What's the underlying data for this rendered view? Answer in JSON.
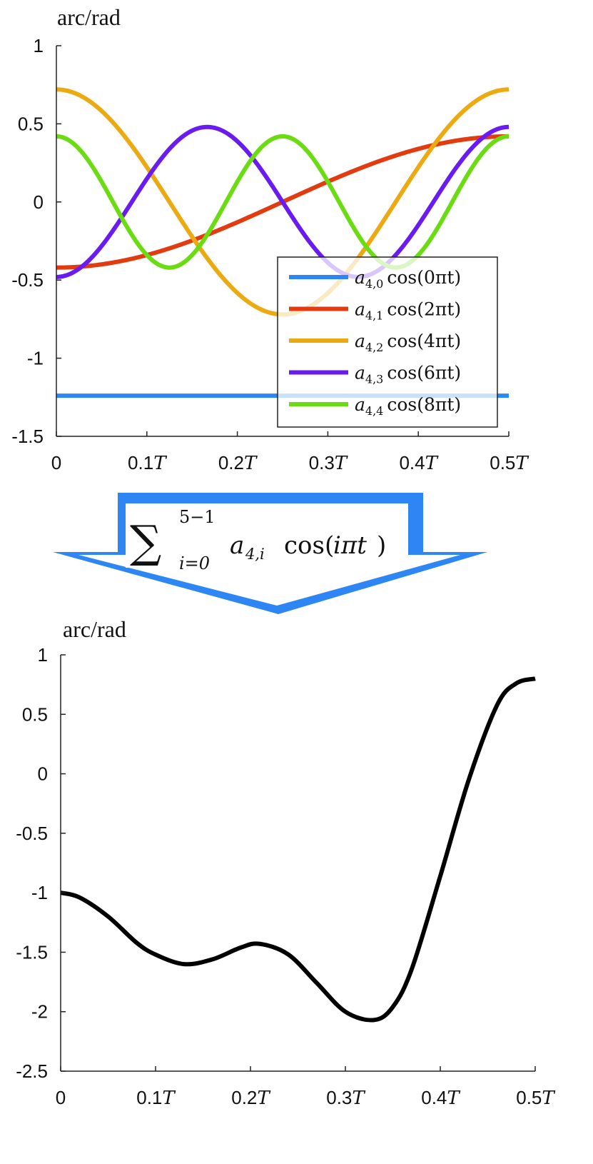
{
  "chart_data": [
    {
      "type": "line",
      "ylabel": "arc/rad",
      "xlim": [
        0,
        0.5
      ],
      "ylim": [
        -1.5,
        1
      ],
      "x_ticks": [
        0,
        0.1,
        0.2,
        0.3,
        0.4,
        0.5
      ],
      "x_tick_labels": [
        {
          "num": "0",
          "unit": ""
        },
        {
          "num": "0.1",
          "unit": "T"
        },
        {
          "num": "0.2",
          "unit": "T"
        },
        {
          "num": "0.3",
          "unit": "T"
        },
        {
          "num": "0.4",
          "unit": "T"
        },
        {
          "num": "0.5",
          "unit": "T"
        }
      ],
      "y_ticks": [
        1,
        0.5,
        0,
        -0.5,
        -1,
        -1.5
      ],
      "y_tick_labels": [
        "1",
        "0.5",
        "0",
        "-0.5",
        "-1",
        "-1.5"
      ],
      "legend_position": "bottom-right",
      "series": [
        {
          "name": "a4,0 cos(0πt)",
          "coef": "a",
          "sub": "4,0",
          "fn": "cos(0πt)",
          "color": "#2e86f5",
          "amplitude": -1.24,
          "harmonic": 0
        },
        {
          "name": "a4,1 cos(2πt)",
          "coef": "a",
          "sub": "4,1",
          "fn": "cos(2πt)",
          "color": "#e23b0f",
          "amplitude": -0.42,
          "harmonic": 1
        },
        {
          "name": "a4,2 cos(4πt)",
          "coef": "a",
          "sub": "4,2",
          "fn": "cos(4πt)",
          "color": "#ecaa12",
          "amplitude": 0.72,
          "harmonic": 2
        },
        {
          "name": "a4,3 cos(6πt)",
          "coef": "a",
          "sub": "4,3",
          "fn": "cos(6πt)",
          "color": "#6a1cf0",
          "amplitude": -0.48,
          "harmonic": 3
        },
        {
          "name": "a4,4 cos(8πt)",
          "coef": "a",
          "sub": "4,4",
          "fn": "cos(8πt)",
          "color": "#6bdc12",
          "amplitude": 0.42,
          "harmonic": 4
        }
      ]
    },
    {
      "type": "line",
      "ylabel": "arc/rad",
      "xlim": [
        0,
        0.5
      ],
      "ylim": [
        -2.5,
        1
      ],
      "x_ticks": [
        0,
        0.1,
        0.2,
        0.3,
        0.4,
        0.5
      ],
      "x_tick_labels": [
        {
          "num": "0",
          "unit": ""
        },
        {
          "num": "0.1",
          "unit": "T"
        },
        {
          "num": "0.2",
          "unit": "T"
        },
        {
          "num": "0.3",
          "unit": "T"
        },
        {
          "num": "0.4",
          "unit": "T"
        },
        {
          "num": "0.5",
          "unit": "T"
        }
      ],
      "y_ticks": [
        1,
        0.5,
        0,
        -0.5,
        -1,
        -1.5,
        -2,
        -2.5
      ],
      "y_tick_labels": [
        "1",
        "0.5",
        "0",
        "-0.5",
        "-1",
        "-1.5",
        "-2",
        "-2.5"
      ],
      "series": [
        {
          "color": "#000000",
          "x": [
            0,
            0.02,
            0.05,
            0.08,
            0.1,
            0.13,
            0.16,
            0.19,
            0.21,
            0.24,
            0.27,
            0.3,
            0.33,
            0.35,
            0.37,
            0.4,
            0.43,
            0.46,
            0.48,
            0.5
          ],
          "y": [
            -1.0,
            -1.04,
            -1.2,
            -1.42,
            -1.52,
            -1.6,
            -1.56,
            -1.46,
            -1.43,
            -1.52,
            -1.76,
            -2.0,
            -2.07,
            -1.96,
            -1.64,
            -0.86,
            -0.05,
            0.58,
            0.76,
            0.8
          ]
        }
      ]
    }
  ],
  "arrow": {
    "formula": {
      "sum": "∑",
      "upper": "5−1",
      "lower": "i=0",
      "term_coef": "a",
      "term_sub": "4,i",
      "term_fn": "cos(",
      "term_arg": "iπt",
      "term_close": ")"
    },
    "color": "#2e86f5"
  }
}
